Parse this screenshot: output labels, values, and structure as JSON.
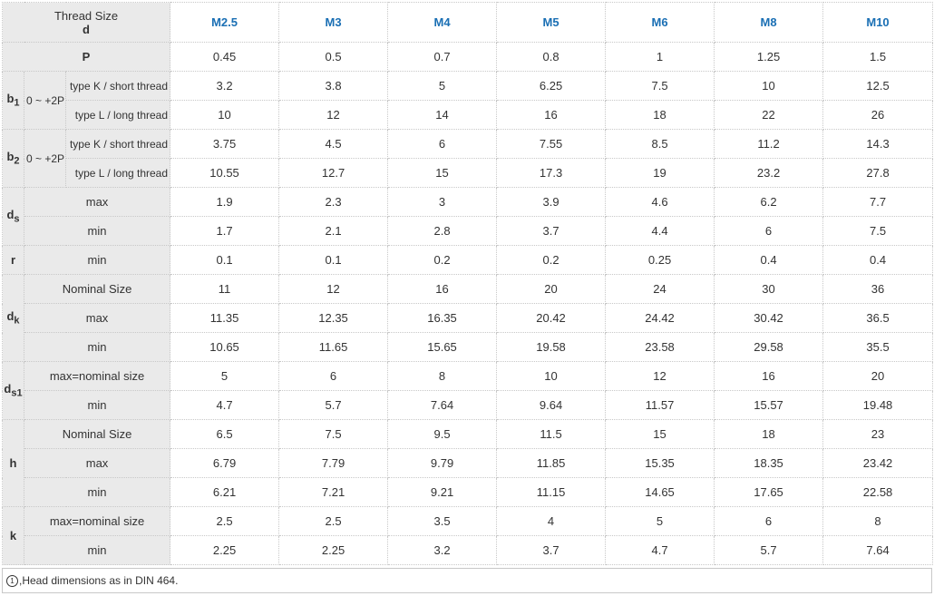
{
  "header": {
    "thread_size_label": "Thread Size",
    "thread_size_symbol": "d",
    "sizes": [
      "M2.5",
      "M3",
      "M4",
      "M5",
      "M6",
      "M8",
      "M10"
    ]
  },
  "rows": {
    "P": {
      "label": "P",
      "values": [
        "0.45",
        "0.5",
        "0.7",
        "0.8",
        "1",
        "1.25",
        "1.5"
      ]
    },
    "b1": {
      "symbol": "b",
      "sub": "1",
      "tolerance": "0 ~ +2P",
      "k_label": "type K / short thread",
      "k_values": [
        "3.2",
        "3.8",
        "5",
        "6.25",
        "7.5",
        "10",
        "12.5"
      ],
      "l_label": "type L / long thread",
      "l_values": [
        "10",
        "12",
        "14",
        "16",
        "18",
        "22",
        "26"
      ]
    },
    "b2": {
      "symbol": "b",
      "sub": "2",
      "tolerance": "0 ~ +2P",
      "k_label": "type K / short thread",
      "k_values": [
        "3.75",
        "4.5",
        "6",
        "7.55",
        "8.5",
        "11.2",
        "14.3"
      ],
      "l_label": "type L / long thread",
      "l_values": [
        "10.55",
        "12.7",
        "15",
        "17.3",
        "19",
        "23.2",
        "27.8"
      ]
    },
    "ds": {
      "symbol": "d",
      "sub": "s",
      "max_label": "max",
      "max_values": [
        "1.9",
        "2.3",
        "3",
        "3.9",
        "4.6",
        "6.2",
        "7.7"
      ],
      "min_label": "min",
      "min_values": [
        "1.7",
        "2.1",
        "2.8",
        "3.7",
        "4.4",
        "6",
        "7.5"
      ]
    },
    "r": {
      "symbol": "r",
      "min_label": "min",
      "min_values": [
        "0.1",
        "0.1",
        "0.2",
        "0.2",
        "0.25",
        "0.4",
        "0.4"
      ]
    },
    "dk": {
      "symbol": "d",
      "sub": "k",
      "nom_label": "Nominal Size",
      "nom_values": [
        "11",
        "12",
        "16",
        "20",
        "24",
        "30",
        "36"
      ],
      "max_label": "max",
      "max_values": [
        "11.35",
        "12.35",
        "16.35",
        "20.42",
        "24.42",
        "30.42",
        "36.5"
      ],
      "min_label": "min",
      "min_values": [
        "10.65",
        "11.65",
        "15.65",
        "19.58",
        "23.58",
        "29.58",
        "35.5"
      ]
    },
    "ds1": {
      "symbol": "d",
      "sub": "s1",
      "max_label": "max=nominal size",
      "max_values": [
        "5",
        "6",
        "8",
        "10",
        "12",
        "16",
        "20"
      ],
      "min_label": "min",
      "min_values": [
        "4.7",
        "5.7",
        "7.64",
        "9.64",
        "11.57",
        "15.57",
        "19.48"
      ]
    },
    "h": {
      "symbol": "h",
      "nom_label": "Nominal Size",
      "nom_values": [
        "6.5",
        "7.5",
        "9.5",
        "11.5",
        "15",
        "18",
        "23"
      ],
      "max_label": "max",
      "max_values": [
        "6.79",
        "7.79",
        "9.79",
        "11.85",
        "15.35",
        "18.35",
        "23.42"
      ],
      "min_label": "min",
      "min_values": [
        "6.21",
        "7.21",
        "9.21",
        "11.15",
        "14.65",
        "17.65",
        "22.58"
      ]
    },
    "k": {
      "symbol": "k",
      "max_label": "max=nominal size",
      "max_values": [
        "2.5",
        "2.5",
        "3.5",
        "4",
        "5",
        "6",
        "8"
      ],
      "min_label": "min",
      "min_values": [
        "2.25",
        "2.25",
        "3.2",
        "3.7",
        "4.7",
        "5.7",
        "7.64"
      ]
    }
  },
  "note": {
    "marker": "1",
    "text": ",Head dimensions as in DIN 464."
  }
}
